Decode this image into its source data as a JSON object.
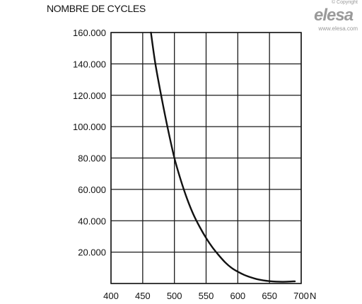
{
  "chart_data": {
    "type": "line",
    "ylabel": "NOMBRE DE CYCLES",
    "xlabel": "N",
    "xlim": [
      400,
      700
    ],
    "ylim": [
      0,
      160000
    ],
    "x_ticks": [
      400,
      450,
      500,
      550,
      600,
      650,
      700
    ],
    "y_ticks": [
      20000,
      40000,
      60000,
      80000,
      100000,
      120000,
      140000,
      160000
    ],
    "x_tick_labels": [
      "400",
      "450",
      "500",
      "550",
      "600",
      "650",
      "700"
    ],
    "y_tick_labels": [
      "20.000",
      "40.000",
      "60.000",
      "80.000",
      "100.000",
      "120.000",
      "140.000",
      "160.000"
    ],
    "grid": true,
    "series": [
      {
        "x": [
          463,
          470,
          480,
          490,
          500,
          510,
          520,
          530,
          540,
          550,
          560,
          570,
          580,
          590,
          600,
          610,
          620,
          630,
          640,
          650,
          660,
          670,
          680,
          690
        ],
        "y": [
          160000,
          140000,
          118000,
          98000,
          80000,
          66000,
          54000,
          44000,
          36000,
          29000,
          23000,
          18000,
          13500,
          10000,
          7500,
          5500,
          4000,
          2800,
          2000,
          1500,
          1200,
          1100,
          1200,
          1400
        ]
      }
    ]
  },
  "logo": {
    "copyright": "© Copyright",
    "name": "elesa",
    "url": "www.elesa.com"
  }
}
